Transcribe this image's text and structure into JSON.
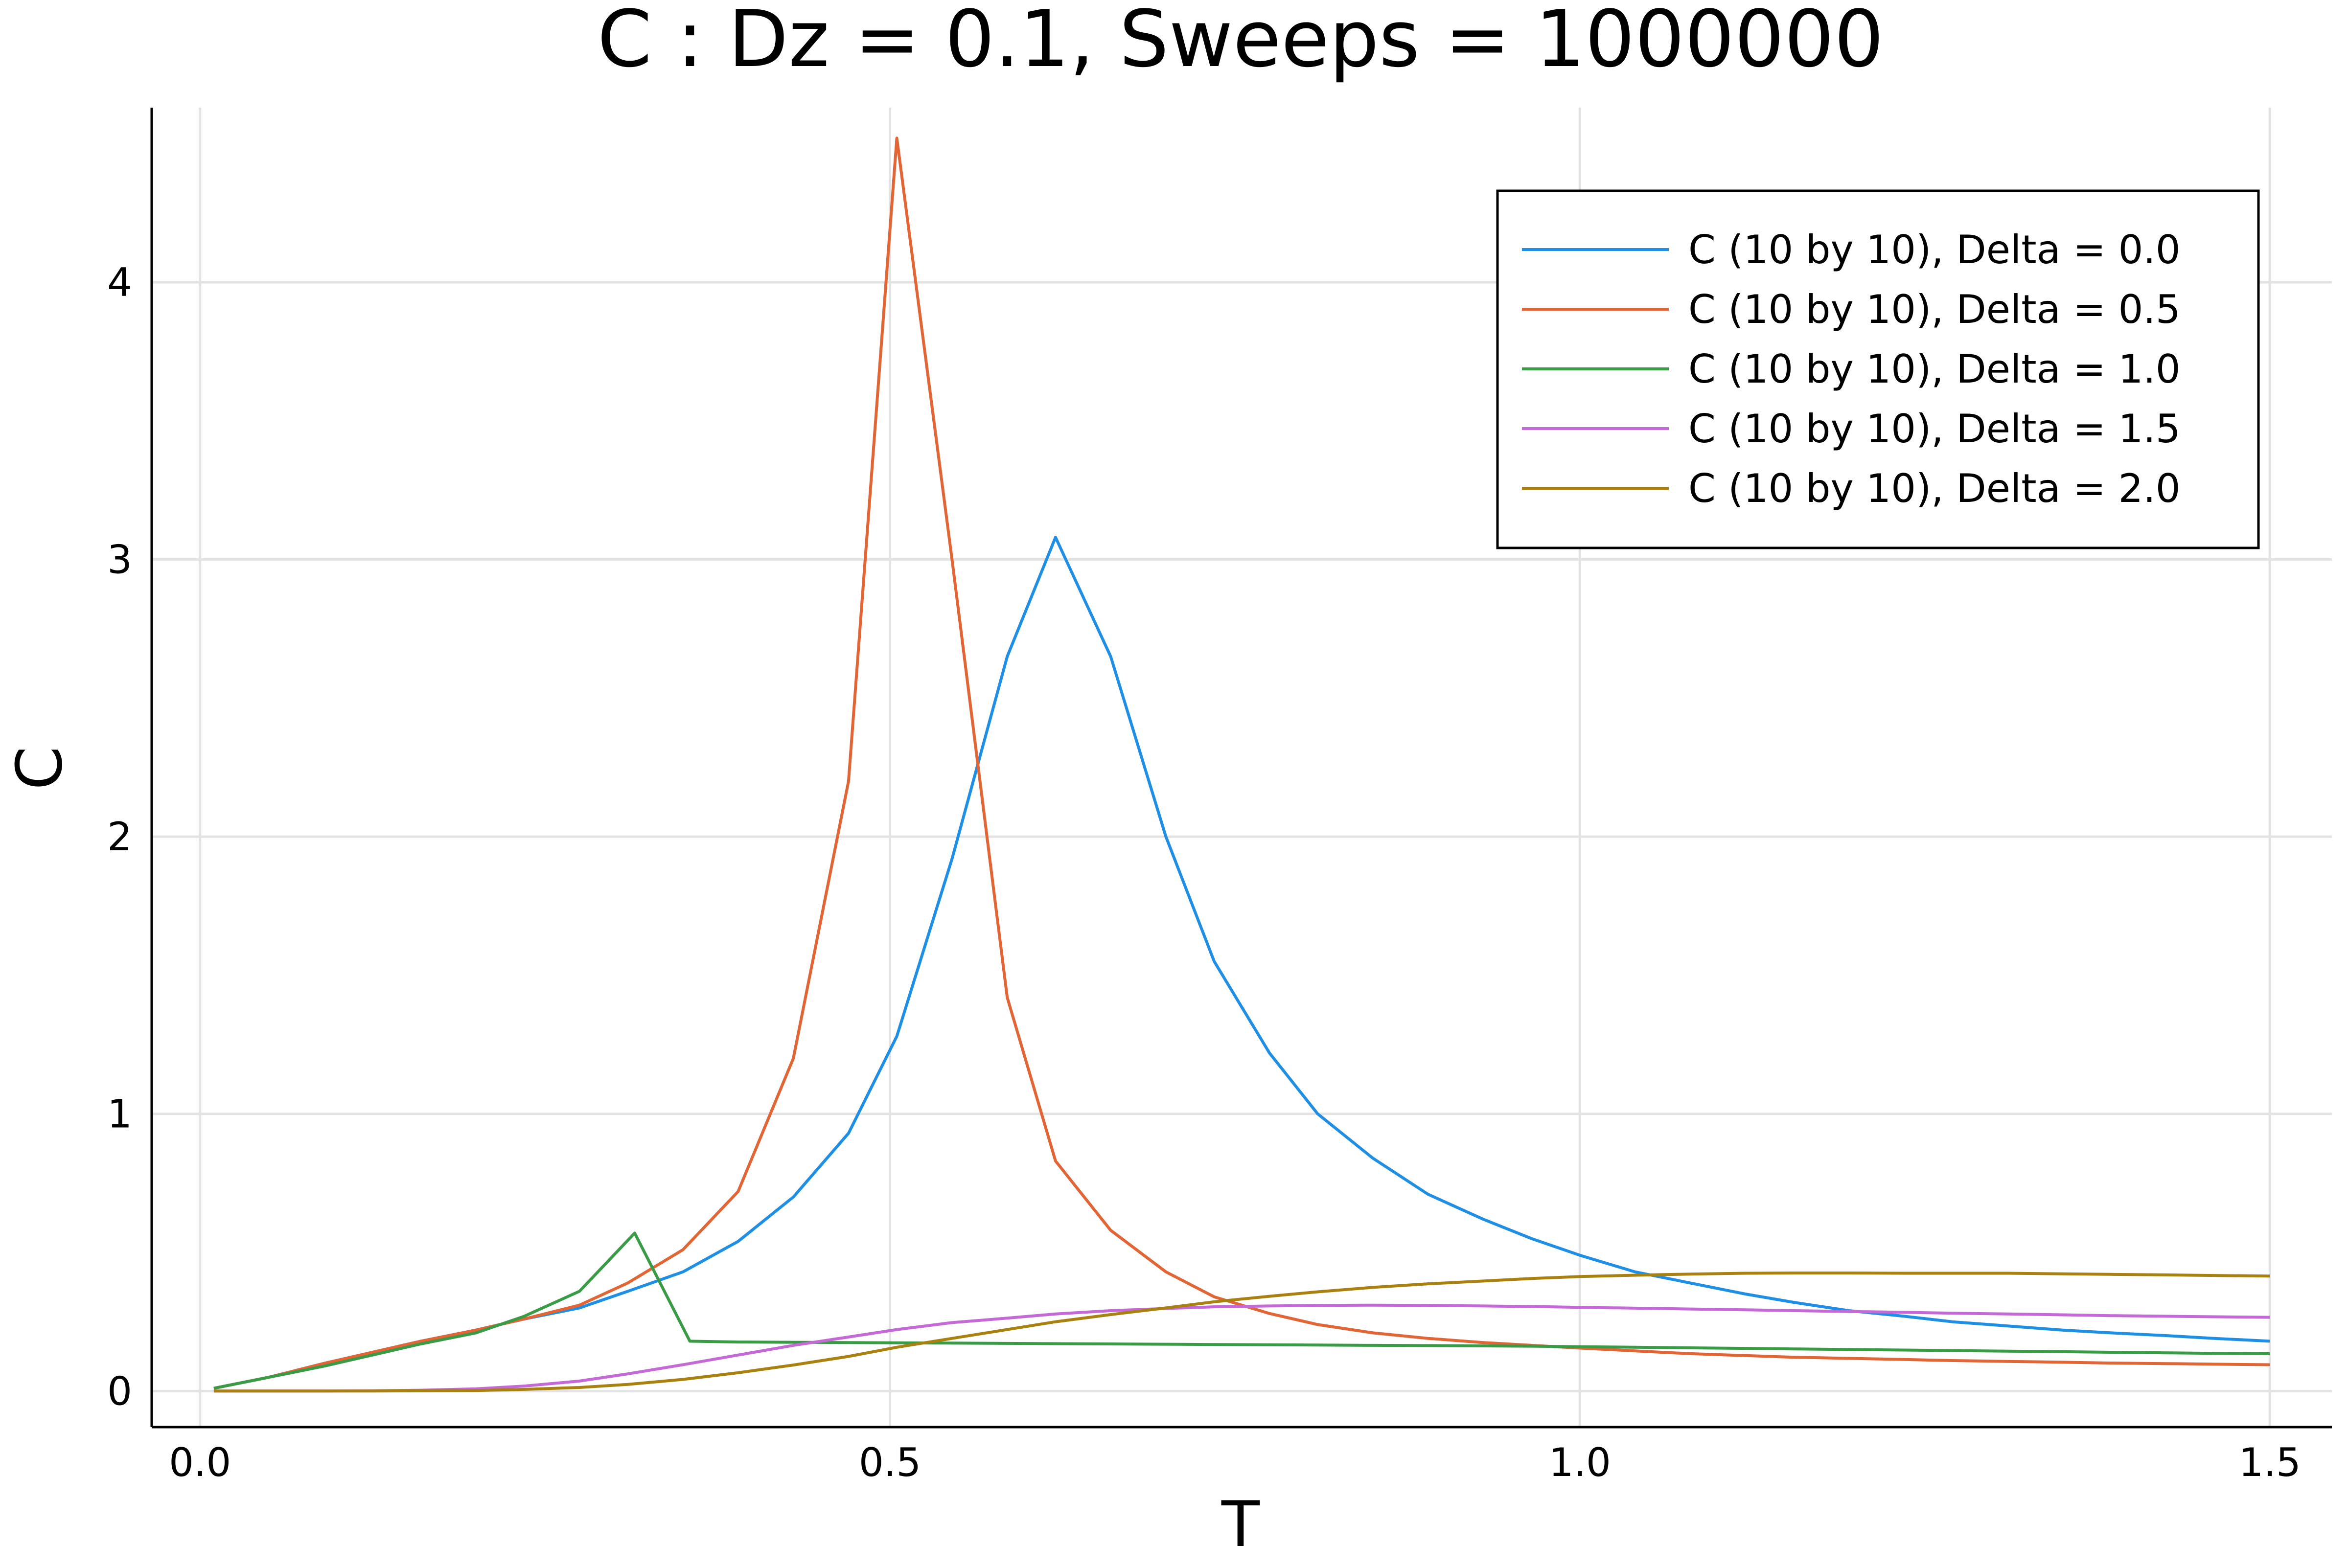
{
  "chart_data": {
    "type": "line",
    "title": "C : Dz = 0.1, Sweeps = 1000000",
    "xlabel": "T",
    "ylabel": "C",
    "xlim": [
      -0.035,
      1.545
    ],
    "ylim": [
      -0.13,
      4.63
    ],
    "x_ticks": [
      0.0,
      0.5,
      1.0,
      1.5
    ],
    "x_tick_labels": [
      "0.0",
      "0.5",
      "1.0",
      "1.5"
    ],
    "y_ticks": [
      0,
      1,
      2,
      3,
      4
    ],
    "y_tick_labels": [
      "0",
      "1",
      "2",
      "3",
      "4"
    ],
    "grid": true,
    "legend_position": "top-right",
    "series": [
      {
        "name": "C (10 by 10), Delta = 0.0",
        "color": "#1f8fe6",
        "x": [
          0.01,
          0.05,
          0.09,
          0.125,
          0.16,
          0.2,
          0.235,
          0.275,
          0.31,
          0.35,
          0.39,
          0.43,
          0.47,
          0.505,
          0.545,
          0.585,
          0.62,
          0.66,
          0.7,
          0.735,
          0.775,
          0.81,
          0.85,
          0.89,
          0.93,
          0.965,
          1.0,
          1.04,
          1.08,
          1.12,
          1.155,
          1.195,
          1.235,
          1.27,
          1.31,
          1.35,
          1.385,
          1.425,
          1.46,
          1.5
        ],
        "y": [
          0.01,
          0.05,
          0.1,
          0.14,
          0.18,
          0.22,
          0.26,
          0.3,
          0.36,
          0.43,
          0.54,
          0.7,
          0.93,
          1.28,
          1.92,
          2.65,
          3.08,
          2.65,
          2.0,
          1.55,
          1.22,
          1.0,
          0.84,
          0.71,
          0.62,
          0.55,
          0.49,
          0.43,
          0.39,
          0.35,
          0.32,
          0.29,
          0.27,
          0.25,
          0.235,
          0.22,
          0.21,
          0.2,
          0.19,
          0.18
        ]
      },
      {
        "name": "C (10 by 10), Delta = 0.5",
        "color": "#e26535",
        "x": [
          0.01,
          0.05,
          0.09,
          0.125,
          0.16,
          0.2,
          0.235,
          0.275,
          0.31,
          0.35,
          0.39,
          0.43,
          0.47,
          0.505,
          0.545,
          0.585,
          0.62,
          0.66,
          0.7,
          0.735,
          0.775,
          0.81,
          0.85,
          0.89,
          0.93,
          0.965,
          1.0,
          1.04,
          1.08,
          1.12,
          1.155,
          1.195,
          1.235,
          1.27,
          1.31,
          1.35,
          1.385,
          1.425,
          1.46,
          1.5
        ],
        "y": [
          0.01,
          0.05,
          0.1,
          0.14,
          0.18,
          0.22,
          0.26,
          0.31,
          0.39,
          0.51,
          0.72,
          1.2,
          2.2,
          4.52,
          3.0,
          1.42,
          0.83,
          0.58,
          0.43,
          0.34,
          0.28,
          0.24,
          0.21,
          0.19,
          0.175,
          0.165,
          0.155,
          0.145,
          0.135,
          0.128,
          0.122,
          0.118,
          0.114,
          0.11,
          0.107,
          0.104,
          0.101,
          0.099,
          0.097,
          0.095
        ]
      },
      {
        "name": "C (10 by 10), Delta = 1.0",
        "color": "#3a9b46",
        "x": [
          0.01,
          0.05,
          0.09,
          0.125,
          0.16,
          0.2,
          0.235,
          0.275,
          0.315,
          0.355,
          0.39,
          0.43,
          0.47,
          0.505,
          0.545,
          0.585,
          0.62,
          0.66,
          0.7,
          0.735,
          0.775,
          0.81,
          0.85,
          0.89,
          0.93,
          0.965,
          1.0,
          1.04,
          1.08,
          1.12,
          1.155,
          1.195,
          1.235,
          1.27,
          1.31,
          1.35,
          1.385,
          1.425,
          1.46,
          1.5
        ],
        "y": [
          0.01,
          0.05,
          0.09,
          0.13,
          0.17,
          0.21,
          0.27,
          0.36,
          0.57,
          0.18,
          0.177,
          0.176,
          0.175,
          0.174,
          0.173,
          0.172,
          0.171,
          0.17,
          0.169,
          0.168,
          0.167,
          0.166,
          0.165,
          0.164,
          0.163,
          0.162,
          0.16,
          0.158,
          0.156,
          0.154,
          0.152,
          0.15,
          0.148,
          0.146,
          0.144,
          0.142,
          0.14,
          0.138,
          0.136,
          0.135
        ]
      },
      {
        "name": "C (10 by 10), Delta = 1.5",
        "color": "#c36ad6",
        "x": [
          0.01,
          0.05,
          0.09,
          0.125,
          0.16,
          0.2,
          0.235,
          0.275,
          0.31,
          0.35,
          0.39,
          0.43,
          0.47,
          0.505,
          0.545,
          0.585,
          0.62,
          0.66,
          0.7,
          0.735,
          0.775,
          0.81,
          0.85,
          0.89,
          0.93,
          0.965,
          1.0,
          1.04,
          1.08,
          1.12,
          1.155,
          1.195,
          1.235,
          1.27,
          1.31,
          1.35,
          1.385,
          1.425,
          1.46,
          1.5
        ],
        "y": [
          0.0,
          0.0,
          0.0,
          0.001,
          0.003,
          0.008,
          0.018,
          0.036,
          0.062,
          0.095,
          0.13,
          0.165,
          0.195,
          0.222,
          0.247,
          0.263,
          0.278,
          0.29,
          0.298,
          0.304,
          0.307,
          0.309,
          0.31,
          0.309,
          0.307,
          0.305,
          0.302,
          0.299,
          0.296,
          0.293,
          0.29,
          0.287,
          0.284,
          0.281,
          0.278,
          0.275,
          0.272,
          0.27,
          0.268,
          0.266
        ]
      },
      {
        "name": "C (10 by 10), Delta = 2.0",
        "color": "#a98111",
        "x": [
          0.01,
          0.05,
          0.09,
          0.125,
          0.16,
          0.2,
          0.235,
          0.275,
          0.31,
          0.35,
          0.39,
          0.43,
          0.47,
          0.505,
          0.545,
          0.585,
          0.62,
          0.66,
          0.7,
          0.735,
          0.775,
          0.81,
          0.85,
          0.89,
          0.93,
          0.965,
          1.0,
          1.04,
          1.08,
          1.12,
          1.155,
          1.195,
          1.235,
          1.27,
          1.31,
          1.35,
          1.385,
          1.425,
          1.46,
          1.5
        ],
        "y": [
          0.0,
          0.0,
          0.0,
          0.0,
          0.001,
          0.002,
          0.006,
          0.013,
          0.024,
          0.042,
          0.066,
          0.094,
          0.125,
          0.158,
          0.19,
          0.222,
          0.25,
          0.276,
          0.3,
          0.322,
          0.342,
          0.358,
          0.374,
          0.387,
          0.397,
          0.406,
          0.413,
          0.418,
          0.422,
          0.425,
          0.426,
          0.426,
          0.425,
          0.425,
          0.425,
          0.423,
          0.421,
          0.419,
          0.417,
          0.415
        ]
      }
    ]
  }
}
